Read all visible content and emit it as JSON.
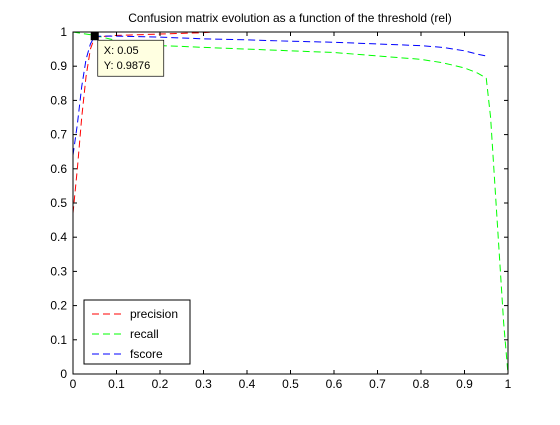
{
  "chart_data": {
    "type": "line",
    "title": "Confusion matrix evolution as a function of the threshold (rel)",
    "xlabel": "",
    "ylabel": "",
    "xlim": [
      0,
      1
    ],
    "ylim": [
      0,
      1
    ],
    "x_ticks": [
      "0",
      "0.1",
      "0.2",
      "0.3",
      "0.4",
      "0.5",
      "0.6",
      "0.7",
      "0.8",
      "0.9",
      "1"
    ],
    "y_ticks": [
      "0",
      "0.1",
      "0.2",
      "0.3",
      "0.4",
      "0.5",
      "0.6",
      "0.7",
      "0.8",
      "0.9",
      "1"
    ],
    "grid": false,
    "legend_position": "bottom-left",
    "series": [
      {
        "name": "precision",
        "color": "#ff0000",
        "line_style": "dashed",
        "x": [
          0,
          0.01,
          0.02,
          0.03,
          0.04,
          0.05,
          0.1,
          0.15,
          0.2,
          0.25,
          0.3,
          0.32
        ],
        "y": [
          0.47,
          0.6,
          0.75,
          0.87,
          0.95,
          0.985,
          0.99,
          0.992,
          0.994,
          0.996,
          0.998,
          1.0
        ]
      },
      {
        "name": "recall",
        "color": "#00ff00",
        "line_style": "dashed",
        "x": [
          0,
          0.05,
          0.1,
          0.15,
          0.2,
          0.25,
          0.3,
          0.4,
          0.5,
          0.6,
          0.7,
          0.8,
          0.85,
          0.9,
          0.93,
          0.95,
          0.96,
          0.97,
          0.98,
          0.99,
          1.0
        ],
        "y": [
          1.0,
          0.99,
          0.975,
          0.965,
          0.96,
          0.958,
          0.955,
          0.95,
          0.945,
          0.94,
          0.93,
          0.92,
          0.91,
          0.895,
          0.88,
          0.865,
          0.75,
          0.55,
          0.35,
          0.15,
          0.0
        ]
      },
      {
        "name": "fscore",
        "color": "#0000ff",
        "line_style": "dashed",
        "x": [
          0,
          0.01,
          0.02,
          0.03,
          0.04,
          0.05,
          0.1,
          0.2,
          0.3,
          0.4,
          0.5,
          0.6,
          0.7,
          0.8,
          0.85,
          0.9,
          0.93,
          0.95
        ],
        "y": [
          0.64,
          0.73,
          0.84,
          0.92,
          0.965,
          0.9876,
          0.988,
          0.985,
          0.98,
          0.977,
          0.973,
          0.97,
          0.965,
          0.96,
          0.955,
          0.945,
          0.935,
          0.93
        ]
      }
    ],
    "datatip": {
      "x": 0.05,
      "y": 0.9876,
      "x_label": "X: 0.05",
      "y_label": "Y: 0.9876"
    }
  }
}
